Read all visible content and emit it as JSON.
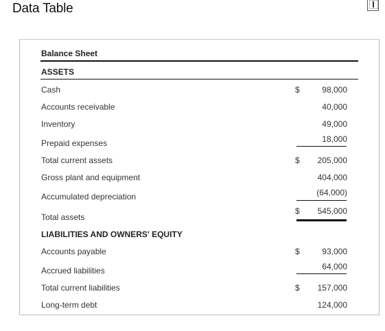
{
  "window": {
    "title": "Data Table",
    "window_icon": "window-restore-icon"
  },
  "table": {
    "title": "Balance Sheet",
    "assets_header": "ASSETS",
    "liabilities_header": "LIABILITIES AND OWNERS' EQUITY",
    "rows": {
      "cash": {
        "label": "Cash",
        "dollar": "$",
        "value": "98,000"
      },
      "accounts_receivable": {
        "label": "Accounts receivable",
        "value": "40,000"
      },
      "inventory": {
        "label": "Inventory",
        "value": "49,000"
      },
      "prepaid_expenses": {
        "label": "Prepaid expenses",
        "value": "18,000"
      },
      "total_current_assets": {
        "label": "Total current assets",
        "dollar": "$",
        "value": "205,000"
      },
      "gross_plant": {
        "label": "Gross plant and equipment",
        "value": "404,000"
      },
      "accumulated_depreciation": {
        "label": "Accumulated depreciation",
        "value": "(64,000)"
      },
      "total_assets": {
        "label": "Total assets",
        "dollar": "$",
        "value": "545,000"
      },
      "accounts_payable": {
        "label": "Accounts payable",
        "dollar": "$",
        "value": "93,000"
      },
      "accrued_liabilities": {
        "label": "Accrued liabilities",
        "value": "64,000"
      },
      "total_current_liabilities": {
        "label": "Total current liabilities",
        "dollar": "$",
        "value": "157,000"
      },
      "long_term_debt": {
        "label": "Long-term debt",
        "value": "124,000"
      }
    }
  }
}
